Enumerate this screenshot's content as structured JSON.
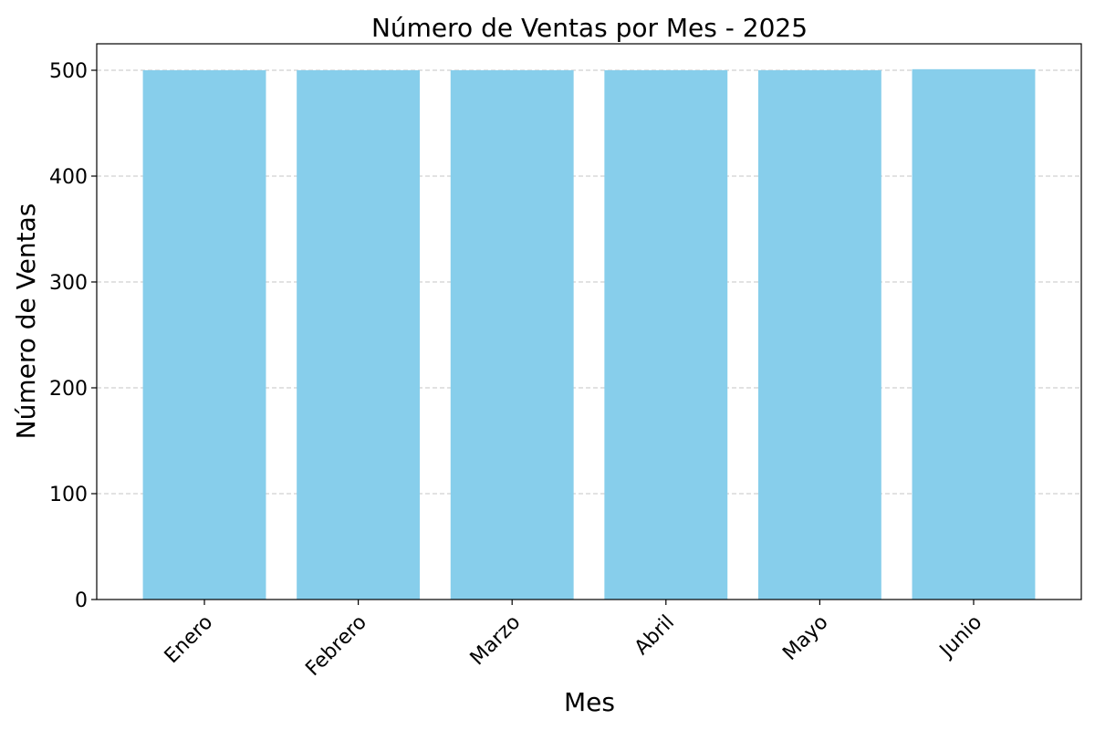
{
  "chart_data": {
    "type": "bar",
    "title": "Número de Ventas por Mes - 2025",
    "xlabel": "Mes",
    "ylabel": "Número de Ventas",
    "categories": [
      "Enero",
      "Febrero",
      "Marzo",
      "Abril",
      "Mayo",
      "Junio"
    ],
    "values": [
      500,
      500,
      500,
      500,
      500,
      501
    ],
    "ylim": [
      0,
      525
    ],
    "yticks": [
      0,
      100,
      200,
      300,
      400,
      500
    ],
    "grid": "y-dashed",
    "bar_color": "#87ceeb",
    "grid_color": "#c4c4c4"
  }
}
